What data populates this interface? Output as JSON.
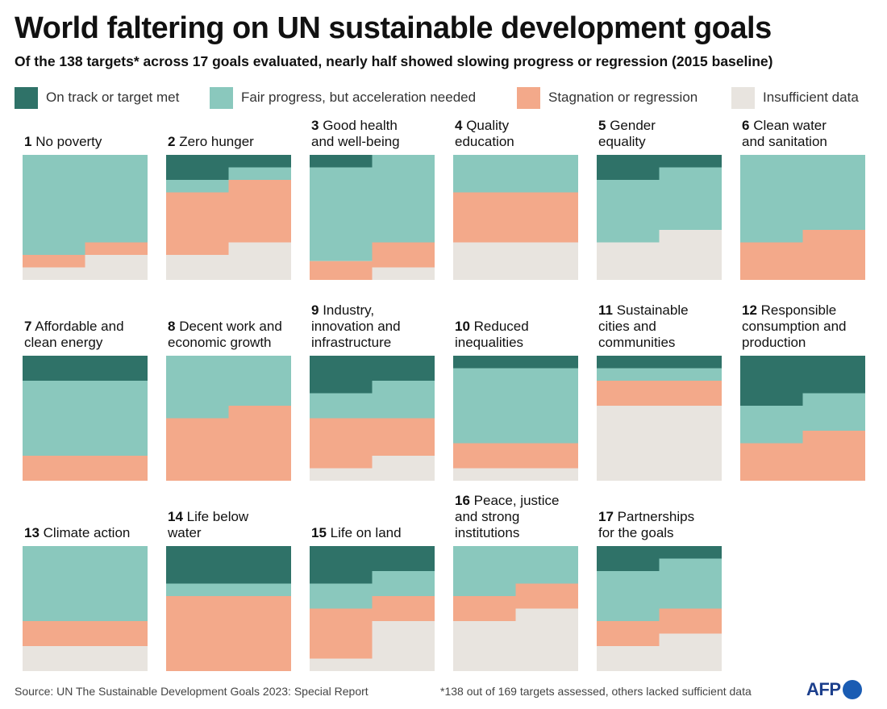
{
  "title": "World faltering on UN sustainable development goals",
  "subtitle": "Of the 138 targets* across 17 goals evaluated, nearly half showed slowing progress or regression (2015 baseline)",
  "colors": {
    "on_track": "#2f7268",
    "fair": "#8ac8bd",
    "stagnation": "#f3a98a",
    "insufficient": "#e8e4df"
  },
  "legend": [
    {
      "key": "on_track",
      "label": "On track or target met"
    },
    {
      "key": "fair",
      "label": "Fair progress, but acceleration needed"
    },
    {
      "key": "stagnation",
      "label": "Stagnation or regression"
    },
    {
      "key": "insufficient",
      "label": "Insufficient data"
    }
  ],
  "chart_data": {
    "type": "area",
    "note": "Each goal shows the share of its evaluated targets in each status category, drawn as stacked bands; values are fractions (0-1) read at the left and right halves of each tile.",
    "categories": [
      "on_track",
      "fair",
      "stagnation",
      "insufficient"
    ],
    "goals": [
      {
        "number": "1",
        "name_lines": [
          "No poverty"
        ],
        "left": [
          0,
          0.8,
          0.1,
          0.1
        ],
        "right": [
          0,
          0.7,
          0.1,
          0.2
        ]
      },
      {
        "number": "2",
        "name_lines": [
          "Zero hunger"
        ],
        "left": [
          0.2,
          0.1,
          0.5,
          0.2
        ],
        "right": [
          0.1,
          0.1,
          0.5,
          0.3
        ]
      },
      {
        "number": "3",
        "name_lines": [
          "Good health",
          "and well-being"
        ],
        "left": [
          0.1,
          0.75,
          0.15,
          0
        ],
        "right": [
          0,
          0.7,
          0.2,
          0.1
        ]
      },
      {
        "number": "4",
        "name_lines": [
          "Quality",
          "education"
        ],
        "left": [
          0,
          0.3,
          0.4,
          0.3
        ],
        "right": [
          0,
          0.3,
          0.4,
          0.3
        ]
      },
      {
        "number": "5",
        "name_lines": [
          "Gender",
          "equality"
        ],
        "left": [
          0.2,
          0.5,
          0,
          0.3
        ],
        "right": [
          0.1,
          0.5,
          0,
          0.4
        ]
      },
      {
        "number": "6",
        "name_lines": [
          "Clean water",
          "and sanitation"
        ],
        "left": [
          0,
          0.7,
          0.3,
          0
        ],
        "right": [
          0,
          0.6,
          0.4,
          0
        ]
      },
      {
        "number": "7",
        "name_lines": [
          "Affordable and",
          "clean energy"
        ],
        "left": [
          0.2,
          0.6,
          0.2,
          0
        ],
        "right": [
          0.2,
          0.6,
          0.2,
          0
        ]
      },
      {
        "number": "8",
        "name_lines": [
          "Decent work and",
          "economic growth"
        ],
        "left": [
          0,
          0.5,
          0.5,
          0
        ],
        "right": [
          0,
          0.4,
          0.6,
          0
        ]
      },
      {
        "number": "9",
        "name_lines": [
          "Industry,",
          "innovation and",
          "infrastructure"
        ],
        "left": [
          0.3,
          0.2,
          0.4,
          0.1
        ],
        "right": [
          0.2,
          0.3,
          0.3,
          0.2
        ]
      },
      {
        "number": "10",
        "name_lines": [
          "Reduced",
          "inequalities"
        ],
        "left": [
          0.1,
          0.6,
          0.2,
          0.1
        ],
        "right": [
          0.1,
          0.6,
          0.2,
          0.1
        ]
      },
      {
        "number": "11",
        "name_lines": [
          "Sustainable",
          "cities and",
          "communities"
        ],
        "left": [
          0.1,
          0.1,
          0.2,
          0.6
        ],
        "right": [
          0.1,
          0.1,
          0.2,
          0.6
        ]
      },
      {
        "number": "12",
        "name_lines": [
          "Responsible",
          "consumption and",
          "production"
        ],
        "left": [
          0.4,
          0.3,
          0.3,
          0
        ],
        "right": [
          0.3,
          0.3,
          0.4,
          0
        ]
      },
      {
        "number": "13",
        "name_lines": [
          "Climate action"
        ],
        "left": [
          0,
          0.6,
          0.2,
          0.2
        ],
        "right": [
          0,
          0.6,
          0.2,
          0.2
        ]
      },
      {
        "number": "14",
        "name_lines": [
          "Life below",
          "water"
        ],
        "left": [
          0.3,
          0.1,
          0.6,
          0
        ],
        "right": [
          0.3,
          0.1,
          0.6,
          0
        ]
      },
      {
        "number": "15",
        "name_lines": [
          "Life on land"
        ],
        "left": [
          0.3,
          0.2,
          0.4,
          0.1
        ],
        "right": [
          0.2,
          0.2,
          0.2,
          0.4
        ]
      },
      {
        "number": "16",
        "name_lines": [
          "Peace, justice",
          "and strong",
          "institutions"
        ],
        "left": [
          0,
          0.4,
          0.2,
          0.4
        ],
        "right": [
          0,
          0.3,
          0.2,
          0.5
        ]
      },
      {
        "number": "17",
        "name_lines": [
          "Partnerships",
          "for the goals"
        ],
        "left": [
          0.2,
          0.4,
          0.2,
          0.2
        ],
        "right": [
          0.1,
          0.4,
          0.2,
          0.3
        ]
      }
    ]
  },
  "footer": {
    "source": "Source: UN The Sustainable Development Goals 2023: Special Report",
    "note": "*138 out of 169 targets assessed, others lacked sufficient data",
    "logo_text": "AFP"
  }
}
